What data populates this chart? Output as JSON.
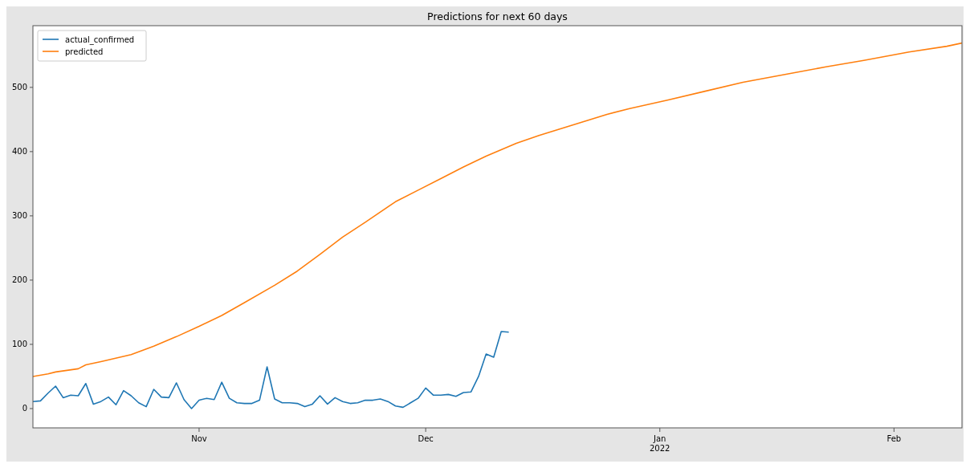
{
  "chart_data": {
    "type": "line",
    "title": "Predictions for next 60 days",
    "x": [
      "2021-10-10",
      "2021-10-11",
      "2021-10-12",
      "2021-10-13",
      "2021-10-14",
      "2021-10-15",
      "2021-10-16",
      "2021-10-17",
      "2021-10-18",
      "2021-10-19",
      "2021-10-20",
      "2021-10-21",
      "2021-10-22",
      "2021-10-23",
      "2021-10-24",
      "2021-10-25",
      "2021-10-26",
      "2021-10-27",
      "2021-10-28",
      "2021-10-29",
      "2021-10-30",
      "2021-10-31",
      "2021-11-01",
      "2021-11-02",
      "2021-11-03",
      "2021-11-04",
      "2021-11-05",
      "2021-11-06",
      "2021-11-07",
      "2021-11-08",
      "2021-11-09",
      "2021-11-10",
      "2021-11-11",
      "2021-11-12",
      "2021-11-13",
      "2021-11-14",
      "2021-11-15",
      "2021-11-16",
      "2021-11-17",
      "2021-11-18",
      "2021-11-19",
      "2021-11-20",
      "2021-11-21",
      "2021-11-22",
      "2021-11-23",
      "2021-11-24",
      "2021-11-25",
      "2021-11-26",
      "2021-11-27",
      "2021-11-28",
      "2021-11-29",
      "2021-11-30",
      "2021-12-01",
      "2021-12-02",
      "2021-12-03",
      "2021-12-04",
      "2021-12-05",
      "2021-12-06",
      "2021-12-07",
      "2021-12-08",
      "2021-12-09",
      "2021-12-10",
      "2021-12-11",
      "2021-12-12"
    ],
    "series": [
      {
        "name": "actual_confirmed",
        "color": "#1f77b4",
        "values": [
          11,
          12,
          24,
          35,
          17,
          21,
          20,
          39,
          7,
          11,
          18,
          6,
          28,
          20,
          9,
          3,
          30,
          18,
          17,
          40,
          14,
          0,
          13,
          16,
          14,
          41,
          16,
          9,
          8,
          8,
          13,
          65,
          15,
          9,
          9,
          8,
          3,
          7,
          20,
          7,
          17,
          11,
          8,
          9,
          13,
          13,
          15,
          11,
          4,
          2,
          9,
          16,
          32,
          21,
          21,
          22,
          19,
          25,
          26,
          50,
          85,
          80,
          120,
          119
        ]
      },
      {
        "name": "predicted",
        "color": "#ff7f0e",
        "x": [
          "2021-10-10",
          "2021-10-12",
          "2021-10-13",
          "2021-10-16",
          "2021-10-17",
          "2021-10-19",
          "2021-10-23",
          "2021-10-26",
          "2021-10-29",
          "2021-11-01",
          "2021-11-04",
          "2021-11-07",
          "2021-11-11",
          "2021-11-14",
          "2021-11-17",
          "2021-11-20",
          "2021-11-23",
          "2021-11-27",
          "2021-11-30",
          "2021-12-03",
          "2021-12-06",
          "2021-12-09",
          "2021-12-13",
          "2021-12-16",
          "2021-12-19",
          "2021-12-22",
          "2021-12-25",
          "2021-12-28",
          "2022-01-02",
          "2022-01-07",
          "2022-01-12",
          "2022-01-18",
          "2022-01-23",
          "2022-01-28",
          "2022-02-03",
          "2022-02-08",
          "2022-02-10"
        ],
        "values": [
          50,
          54,
          57,
          62,
          68,
          73,
          84,
          97,
          112,
          128,
          145,
          165,
          192,
          214,
          240,
          267,
          290,
          322,
          340,
          358,
          376,
          393,
          413,
          425,
          436,
          447,
          458,
          467,
          480,
          494,
          508,
          521,
          532,
          542,
          555,
          564,
          569
        ]
      }
    ],
    "xlim": [
      "2021-10-10",
      "2022-02-10"
    ],
    "xticks": [
      {
        "value": "2021-11-01",
        "label": "Nov"
      },
      {
        "value": "2021-12-01",
        "label": "Dec"
      },
      {
        "value": "2022-01-01",
        "label": "Jan\n2022"
      },
      {
        "value": "2022-02-01",
        "label": "Feb"
      }
    ],
    "ylim": [
      -30,
      596
    ],
    "yticks": [
      0,
      100,
      200,
      300,
      400,
      500
    ],
    "legend": "top left",
    "marker": "none",
    "line_style": "solid",
    "grid": false
  }
}
